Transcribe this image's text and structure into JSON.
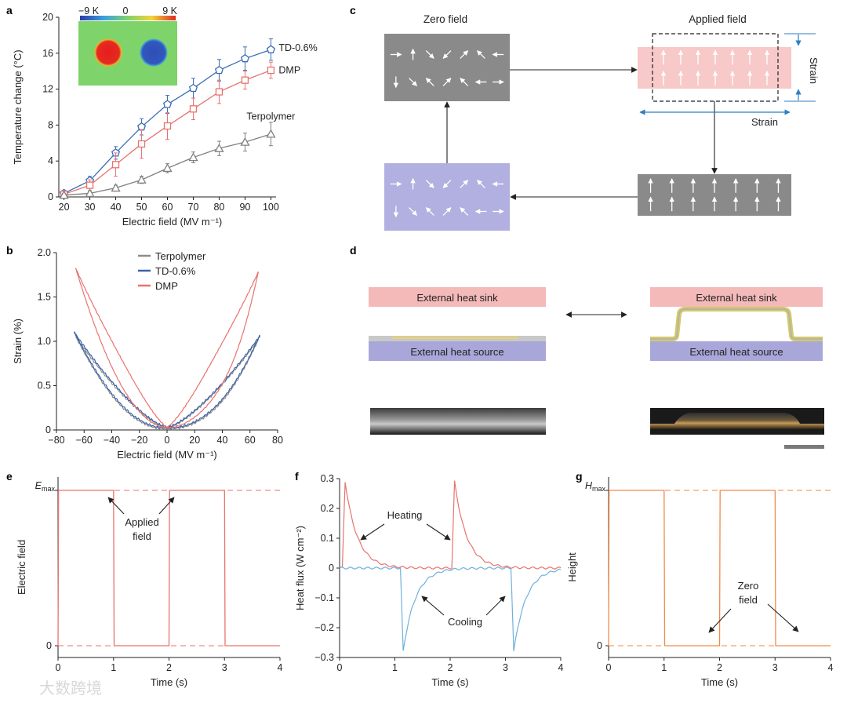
{
  "panels": {
    "a": "a",
    "b": "b",
    "c": "c",
    "d": "d",
    "e": "e",
    "f": "f",
    "g": "g"
  },
  "chart_data": [
    {
      "id": "a",
      "type": "line",
      "xlabel": "Electric field (MV m⁻¹)",
      "ylabel": "Temperature change (°C)",
      "xlim": [
        18,
        102
      ],
      "ylim": [
        0,
        20
      ],
      "xticks": [
        20,
        30,
        40,
        50,
        60,
        70,
        80,
        90,
        100
      ],
      "yticks": [
        0,
        4,
        8,
        12,
        16,
        20
      ],
      "categories": [
        20,
        30,
        40,
        50,
        60,
        70,
        80,
        90,
        100
      ],
      "series": [
        {
          "name": "TD-0.6%",
          "color": "#3a6db5",
          "marker": "pentagon",
          "values": [
            0.4,
            1.8,
            4.9,
            7.8,
            10.3,
            12.1,
            14.1,
            15.4,
            16.4
          ],
          "errors": [
            0.3,
            0.5,
            0.7,
            0.9,
            1.0,
            1.1,
            1.2,
            1.3,
            1.2
          ]
        },
        {
          "name": "DMP",
          "color": "#e8736d",
          "marker": "square",
          "values": [
            0.3,
            1.3,
            3.6,
            5.9,
            7.9,
            9.8,
            11.7,
            13.0,
            14.1
          ],
          "errors": [
            0.3,
            0.6,
            1.3,
            1.6,
            1.5,
            1.2,
            1.3,
            1.0,
            0.9
          ]
        },
        {
          "name": "Terpolymer",
          "color": "#808080",
          "marker": "triangle",
          "values": [
            0.2,
            0.4,
            1.0,
            1.9,
            3.2,
            4.4,
            5.4,
            6.1,
            7.0
          ],
          "errors": [
            0.2,
            0.3,
            0.3,
            0.4,
            0.5,
            0.6,
            0.8,
            1.0,
            1.3
          ]
        }
      ],
      "inset": {
        "scale_min": "−9 K",
        "scale_mid": "0",
        "scale_max": "9 K"
      }
    },
    {
      "id": "b",
      "type": "line",
      "xlabel": "Electric field (MV m⁻¹)",
      "ylabel": "Strain (%)",
      "xlim": [
        -80,
        80
      ],
      "ylim": [
        0,
        2.0
      ],
      "xticks": [
        -80,
        -60,
        -40,
        -20,
        0,
        20,
        40,
        60,
        80
      ],
      "yticks": [
        0,
        0.5,
        1.0,
        1.5,
        2.0
      ],
      "legend": "top-center",
      "series": [
        {
          "name": "Terpolymer",
          "color": "#8c8c8c",
          "emax": 66,
          "peak_neg": 1.05,
          "peak_pos": 1.02,
          "min": 0.02,
          "width": 8
        },
        {
          "name": "TD-0.6%",
          "color": "#3a62a8",
          "emax": 67,
          "peak_neg": 1.1,
          "peak_pos": 1.06,
          "min": 0.03,
          "width": 7
        },
        {
          "name": "DMP",
          "color": "#e8736d",
          "emax": 66,
          "peak_neg": 1.82,
          "peak_pos": 1.78,
          "min": 0.03,
          "width": 16
        }
      ]
    },
    {
      "id": "e",
      "type": "line",
      "xlabel": "Time (s)",
      "ylabel": "Electric field",
      "xlim": [
        0,
        4
      ],
      "xticks": [
        0,
        1,
        2,
        3,
        4
      ],
      "ylevels": [
        "0",
        "Emax"
      ],
      "color": "#e8736d",
      "x": [
        0,
        0.01,
        1.0,
        1.01,
        2.0,
        2.01,
        3.0,
        3.01,
        4.0
      ],
      "values": [
        0,
        1,
        1,
        0,
        0,
        1,
        1,
        0,
        0
      ],
      "annotation": "Applied field",
      "emax_main": "E",
      "emax_sub": "max",
      "zero_label": "0"
    },
    {
      "id": "f",
      "type": "line",
      "xlabel": "Time (s)",
      "ylabel": "Heat flux (W cm⁻²)",
      "xlim": [
        0,
        4
      ],
      "ylim": [
        -0.3,
        0.3
      ],
      "xticks": [
        0,
        1,
        2,
        3,
        4
      ],
      "yticks": [
        -0.3,
        -0.2,
        -0.1,
        0,
        0.1,
        0.2,
        0.3
      ],
      "series": [
        {
          "name": "Heating",
          "color": "#e8736d",
          "pulses": [
            0.1,
            2.08
          ],
          "peak": 0.29
        },
        {
          "name": "Cooling",
          "color": "#6fb1dd",
          "pulses": [
            1.15,
            3.15
          ],
          "peak": -0.28
        }
      ]
    },
    {
      "id": "g",
      "type": "line",
      "xlabel": "Time (s)",
      "ylabel": "Height",
      "xlim": [
        0,
        4
      ],
      "xticks": [
        0,
        1,
        2,
        3,
        4
      ],
      "ylevels": [
        "0",
        "Hmax"
      ],
      "color": "#f08a4b",
      "x": [
        0,
        0.01,
        1.0,
        1.01,
        2.0,
        2.01,
        3.0,
        3.01,
        4.0
      ],
      "values": [
        0,
        1,
        1,
        0,
        0,
        1,
        1,
        0,
        0
      ],
      "annotation": "Zero field",
      "hmax_main": "H",
      "hmax_sub": "max",
      "zero_label": "0"
    }
  ],
  "panel_c": {
    "zero_field": "Zero field",
    "applied_field": "Applied field",
    "strain_v": "Strain",
    "strain_h": "Strain"
  },
  "panel_d": {
    "sink_left": "External heat sink",
    "source_left": "External heat source",
    "sink_right": "External heat sink",
    "source_right": "External heat source"
  },
  "watermark": "大数跨境",
  "colors": {
    "red": "#e8736d",
    "blue": "#3a6db5",
    "gray": "#808080",
    "orange": "#f08a4b",
    "sky": "#6fb1dd"
  }
}
